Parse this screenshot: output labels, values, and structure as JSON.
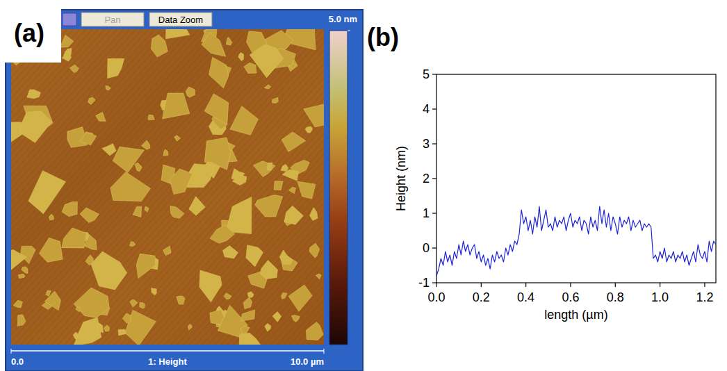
{
  "chart_data": [
    {
      "type": "image",
      "panel": "(a)",
      "toolbar": [
        "Pan",
        "Data Zoom"
      ],
      "caption": "1: Height",
      "xlim": [
        0,
        10
      ],
      "xticks": [
        {
          "value": 0,
          "label": "0.0"
        },
        {
          "value": 10,
          "label": "10.0 µm"
        }
      ],
      "colorbar": {
        "range": [
          0,
          5
        ],
        "ticks": [
          {
            "value": 5,
            "label": "5.0 nm"
          }
        ]
      }
    },
    {
      "type": "line",
      "panel": "(b)",
      "xlabel": "length (µm)",
      "ylabel": "Height (nm)",
      "xlim": [
        0,
        1.25
      ],
      "ylim": [
        -1,
        5
      ],
      "xticks": [
        {
          "value": 0,
          "label": "0.0"
        },
        0.2,
        0.4,
        0.6,
        0.8,
        {
          "value": 1,
          "label": "1.0"
        },
        1.2
      ],
      "yticks": [
        -1,
        0,
        1,
        2,
        3,
        4,
        5
      ],
      "x": [
        0,
        0.01,
        0.02,
        0.03,
        0.04,
        0.05,
        0.06,
        0.07,
        0.08,
        0.09,
        0.1,
        0.11,
        0.12,
        0.13,
        0.14,
        0.15,
        0.16,
        0.17,
        0.18,
        0.19,
        0.2,
        0.21,
        0.22,
        0.23,
        0.24,
        0.25,
        0.26,
        0.27,
        0.28,
        0.29,
        0.3,
        0.31,
        0.32,
        0.33,
        0.34,
        0.35,
        0.36,
        0.37,
        0.38,
        0.39,
        0.4,
        0.41,
        0.42,
        0.43,
        0.44,
        0.45,
        0.46,
        0.47,
        0.48,
        0.49,
        0.5,
        0.51,
        0.52,
        0.53,
        0.54,
        0.55,
        0.56,
        0.57,
        0.58,
        0.59,
        0.6,
        0.61,
        0.62,
        0.63,
        0.64,
        0.65,
        0.66,
        0.67,
        0.68,
        0.69,
        0.7,
        0.71,
        0.72,
        0.73,
        0.74,
        0.75,
        0.76,
        0.77,
        0.78,
        0.79,
        0.8,
        0.81,
        0.82,
        0.83,
        0.84,
        0.85,
        0.86,
        0.87,
        0.88,
        0.89,
        0.9,
        0.91,
        0.92,
        0.93,
        0.94,
        0.95,
        0.96,
        0.97,
        0.98,
        0.99,
        1,
        1.01,
        1.02,
        1.03,
        1.04,
        1.05,
        1.06,
        1.07,
        1.08,
        1.09,
        1.1,
        1.11,
        1.12,
        1.13,
        1.14,
        1.15,
        1.16,
        1.17,
        1.18,
        1.19,
        1.2,
        1.21,
        1.22,
        1.23,
        1.24,
        1.25
      ],
      "series": [
        {
          "color": "#1f24d8",
          "values": [
            -0.8,
            -0.6,
            -0.3,
            -0.5,
            -0.1,
            -0.4,
            -0.2,
            -0.5,
            -0.1,
            -0.3,
            0.1,
            -0.2,
            0.2,
            -0.1,
            0.1,
            -0.2,
            0.0,
            0.1,
            -0.3,
            -0.1,
            -0.4,
            -0.2,
            -0.5,
            -0.3,
            -0.6,
            -0.2,
            -0.4,
            -0.1,
            -0.3,
            -0.2,
            -0.4,
            0.0,
            -0.2,
            0.1,
            -0.1,
            0.2,
            0.1,
            0.4,
            1.1,
            0.7,
            0.9,
            0.5,
            0.8,
            0.4,
            0.9,
            0.6,
            1.2,
            0.5,
            0.8,
            1.1,
            0.6,
            0.7,
            0.5,
            0.9,
            0.6,
            0.8,
            0.7,
            0.9,
            0.5,
            0.8,
            1.0,
            0.6,
            0.8,
            0.7,
            0.9,
            0.5,
            0.8,
            0.7,
            0.4,
            0.9,
            0.6,
            0.8,
            0.5,
            1.2,
            0.7,
            1.1,
            0.6,
            1.0,
            0.5,
            0.9,
            0.7,
            0.4,
            0.9,
            0.6,
            0.8,
            0.7,
            0.9,
            0.5,
            0.8,
            0.6,
            0.7,
            0.8,
            0.5,
            0.7,
            0.6,
            0.7,
            0.6,
            -0.3,
            -0.2,
            -0.4,
            -0.1,
            -0.3,
            0.0,
            -0.4,
            -0.2,
            -0.3,
            -0.1,
            -0.4,
            -0.2,
            -0.3,
            -0.1,
            -0.4,
            -0.2,
            -0.5,
            -0.3,
            -0.1,
            -0.4,
            0.1,
            -0.2,
            -0.3,
            -0.1,
            -0.4,
            0.2,
            -0.1,
            0.2,
            0.1
          ]
        }
      ]
    }
  ]
}
